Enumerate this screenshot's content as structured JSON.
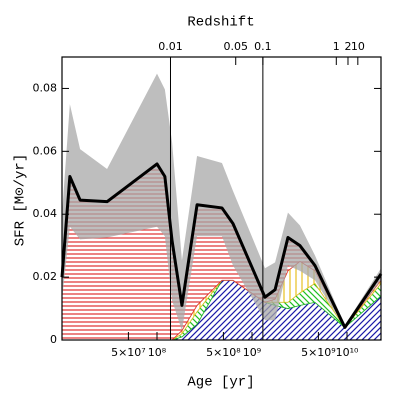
{
  "chart_data": {
    "type": "area",
    "x2label": "Redshift",
    "xlabel": "Age  [yr]",
    "ylabel": "SFR  [M⊙/yr]",
    "xscale": "log",
    "xlim": [
      10000000,
      22800000000
    ],
    "ylim": [
      0,
      0.09
    ],
    "xticks": [
      {
        "value": 50000000,
        "label": "5×10⁷"
      },
      {
        "value": 100000000,
        "label": "10⁸"
      },
      {
        "value": 500000000,
        "label": "5×10⁸"
      },
      {
        "value": 1000000000,
        "label": "10⁹"
      },
      {
        "value": 5000000000,
        "label": "5×10⁹"
      },
      {
        "value": 10000000000,
        "label": "10¹⁰"
      }
    ],
    "yticks": [
      0,
      0.02,
      0.04,
      0.06,
      0.08
    ],
    "x2ticks": [
      0.01,
      0.05,
      0.1,
      1,
      2,
      10
    ],
    "vlines": [
      0.01,
      0.1
    ],
    "x": [
      10000000,
      12100000,
      15500000,
      29800000,
      100000000,
      121000000,
      144000000,
      183000000,
      264000000,
      483000000,
      631000000,
      1370000000,
      1750000000,
      2390000000,
      3200000000,
      4600000000,
      9500000000,
      22800000000
    ],
    "band": {
      "color": "#a8a8a8",
      "upper": [
        0.04,
        0.075,
        0.0607,
        0.0544,
        0.0847,
        0.0797,
        0.063,
        0.0253,
        0.0585,
        0.0563,
        0.0474,
        0.0228,
        0.0247,
        0.0405,
        0.0364,
        0.0269,
        0.0047,
        0.0228
      ],
      "lower": [
        0.0126,
        0.036,
        0.032,
        0.0326,
        0.036,
        0.033,
        0.0126,
        0.003,
        0.033,
        0.033,
        0.0237,
        0.0063,
        0.0063,
        0.0237,
        0.022,
        0.019,
        0.0038,
        0.019
      ]
    },
    "series": [
      {
        "color": "#1a1aa8",
        "hatch": "diagonal",
        "values": [
          0,
          0,
          0,
          0,
          0,
          0,
          0,
          0.001,
          0.005,
          0.019,
          0.019,
          0.012,
          0.011,
          0.01,
          0.011,
          0.012,
          0.004,
          0.014
        ]
      },
      {
        "color": "#22c022",
        "hatch": "antidiagonal",
        "values": [
          0,
          0,
          0,
          0,
          0,
          0,
          0,
          0.001,
          0.004,
          0,
          0,
          0,
          0.001,
          0.002,
          0.004,
          0.006,
          0,
          0.004
        ]
      },
      {
        "color": "#e8c020",
        "hatch": "vertical",
        "values": [
          0,
          0,
          0,
          0,
          0,
          0,
          0,
          0.001,
          0.002,
          0,
          0,
          0,
          0.001,
          0.01,
          0.01,
          0.004,
          0,
          0.001
        ]
      },
      {
        "color": "#e03030",
        "hatch": "horizontal",
        "values": [
          0.02,
          0.052,
          0.0445,
          0.044,
          0.056,
          0.052,
          0.0316,
          0.008,
          0.032,
          0.023,
          0.018,
          0.0016,
          0.003,
          0.0106,
          0.005,
          0.0017,
          0,
          0.002
        ]
      }
    ],
    "line": {
      "color": "#000000",
      "values": [
        0.02,
        0.052,
        0.0445,
        0.044,
        0.056,
        0.052,
        0.0316,
        0.011,
        0.043,
        0.042,
        0.037,
        0.0136,
        0.016,
        0.0326,
        0.03,
        0.0237,
        0.004,
        0.021
      ]
    }
  }
}
